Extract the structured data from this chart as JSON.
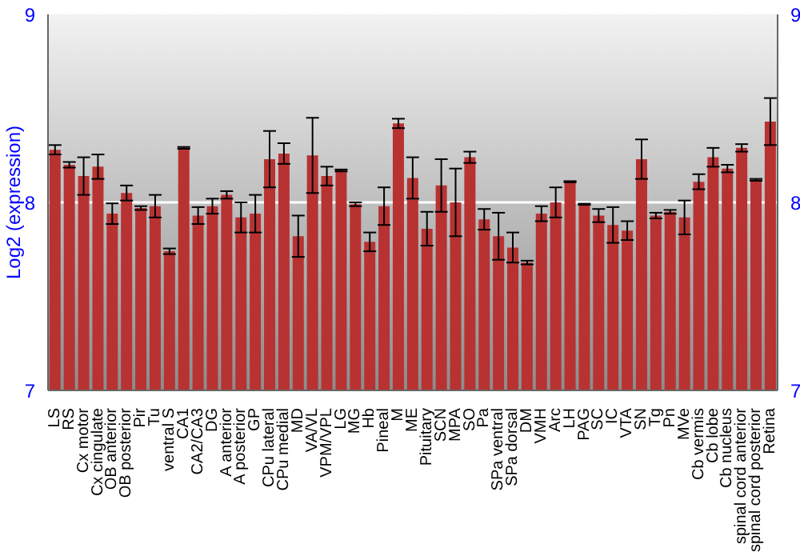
{
  "chart_data": {
    "type": "bar",
    "ylabel": "Log2 (expression)",
    "categories": [
      "LS",
      "RS",
      "Cx motor",
      "Cx cingulate",
      "OB anterior",
      "OB posterior",
      "Pir",
      "Tu",
      "ventral S",
      "CA1",
      "CA2/CA3",
      "DG",
      "A anterior",
      "A posterior",
      "GP",
      "CPu lateral",
      "CPu medial",
      "MD",
      "VA/VL",
      "VPM/VPL",
      "LG",
      "MG",
      "Hb",
      "Pineal",
      "M",
      "ME",
      "Pituitary",
      "SCN",
      "MPA",
      "SO",
      "Pa",
      "SPa ventral",
      "SPa dorsal",
      "DM",
      "VMH",
      "Arc",
      "LH",
      "PAG",
      "SC",
      "IC",
      "VTA",
      "SN",
      "Tg",
      "Pn",
      "MVe",
      "Cb vermis",
      "Cb lobe",
      "Cb nucleus",
      "spinal cord anterior",
      "spinal cord posterior",
      "Retina"
    ],
    "series": [
      {
        "color": "#b83232",
        "values": [
          8.28,
          8.2,
          8.14,
          8.19,
          7.94,
          8.05,
          7.97,
          7.98,
          7.74,
          8.29,
          7.93,
          7.98,
          8.04,
          7.92,
          7.94,
          8.23,
          8.26,
          7.82,
          8.25,
          8.14,
          8.17,
          7.99,
          7.79,
          7.98,
          8.42,
          8.13,
          7.86,
          8.09,
          8.0,
          8.24,
          7.91,
          7.82,
          7.76,
          7.68,
          7.94,
          8.0,
          8.11,
          7.99,
          7.93,
          7.88,
          7.85,
          8.23,
          7.93,
          7.95,
          7.92,
          8.11,
          8.24,
          8.18,
          8.29,
          8.12,
          8.43
        ],
        "errors": [
          0.025,
          0.015,
          0.1,
          0.065,
          0.055,
          0.04,
          0.01,
          0.06,
          0.015,
          0.005,
          0.045,
          0.04,
          0.02,
          0.08,
          0.1,
          0.15,
          0.055,
          0.11,
          0.2,
          0.05,
          0.005,
          0.01,
          0.05,
          0.1,
          0.025,
          0.11,
          0.09,
          0.14,
          0.18,
          0.03,
          0.055,
          0.125,
          0.08,
          0.01,
          0.04,
          0.08,
          0.003,
          0.003,
          0.035,
          0.095,
          0.05,
          0.105,
          0.015,
          0.01,
          0.09,
          0.04,
          0.05,
          0.02,
          0.02,
          0.005,
          0.125
        ]
      }
    ],
    "ylim": [
      7,
      9
    ],
    "yticks": [
      7,
      8,
      9
    ],
    "y2lim": [
      7,
      9
    ],
    "y2ticks": [
      7,
      8,
      9
    ],
    "grid": "y"
  }
}
